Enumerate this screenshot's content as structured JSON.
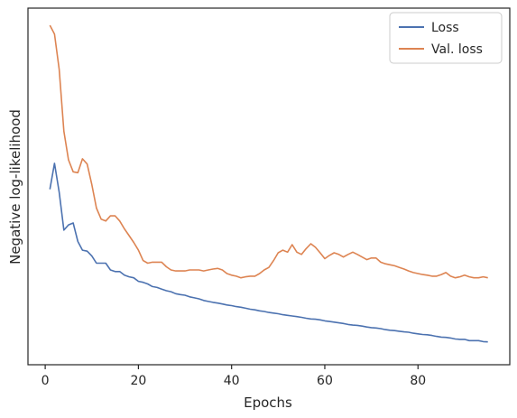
{
  "chart_data": {
    "type": "line",
    "title": "",
    "xlabel": "Epochs",
    "ylabel": "Negative log-likelihood",
    "xlim": [
      -3.7,
      99.7
    ],
    "ylim": [
      0,
      100
    ],
    "x_ticks": [
      0,
      20,
      40,
      60,
      80
    ],
    "y_ticks_shown": false,
    "grid": false,
    "legend": {
      "position": "top-right",
      "entries": [
        "Loss",
        "Val. loss"
      ]
    },
    "series": [
      {
        "name": "Loss",
        "color": "#4c72b0",
        "x": [
          1,
          2,
          3,
          4,
          5,
          6,
          7,
          8,
          9,
          10,
          11,
          12,
          13,
          14,
          15,
          16,
          17,
          18,
          19,
          20,
          21,
          22,
          23,
          24,
          25,
          26,
          27,
          28,
          29,
          30,
          31,
          32,
          33,
          34,
          35,
          36,
          37,
          38,
          39,
          40,
          41,
          42,
          43,
          44,
          45,
          46,
          47,
          48,
          49,
          50,
          51,
          52,
          53,
          54,
          55,
          56,
          57,
          58,
          59,
          60,
          61,
          62,
          63,
          64,
          65,
          66,
          67,
          68,
          69,
          70,
          71,
          72,
          73,
          74,
          75,
          76,
          77,
          78,
          79,
          80,
          81,
          82,
          83,
          84,
          85,
          86,
          87,
          88,
          89,
          90,
          91,
          92,
          93,
          94,
          95
        ],
        "y": [
          49.4,
          57.4,
          48.5,
          36.8,
          38.4,
          39.0,
          33.3,
          30.6,
          30.3,
          28.8,
          26.6,
          26.6,
          26.6,
          24.5,
          24.0,
          24.0,
          22.9,
          22.4,
          22.1,
          21.0,
          20.7,
          20.2,
          19.4,
          19.1,
          18.6,
          18.1,
          17.8,
          17.2,
          16.9,
          16.7,
          16.2,
          15.9,
          15.6,
          15.1,
          14.8,
          14.5,
          14.3,
          14.0,
          13.7,
          13.5,
          13.2,
          13.0,
          12.7,
          12.4,
          12.2,
          11.9,
          11.7,
          11.4,
          11.2,
          11.0,
          10.7,
          10.5,
          10.3,
          10.1,
          9.9,
          9.6,
          9.4,
          9.3,
          9.1,
          8.8,
          8.6,
          8.4,
          8.2,
          8.0,
          7.7,
          7.5,
          7.4,
          7.2,
          6.9,
          6.7,
          6.6,
          6.4,
          6.1,
          5.9,
          5.8,
          5.6,
          5.4,
          5.3,
          5.0,
          4.8,
          4.6,
          4.5,
          4.3,
          4.0,
          3.8,
          3.7,
          3.5,
          3.2,
          3.1,
          3.1,
          2.7,
          2.7,
          2.7,
          2.4,
          2.3
        ]
      },
      {
        "name": "Val. loss",
        "color": "#dd8452",
        "x": [
          1,
          2,
          3,
          4,
          5,
          6,
          7,
          8,
          9,
          10,
          11,
          12,
          13,
          14,
          15,
          16,
          17,
          18,
          19,
          20,
          21,
          22,
          23,
          24,
          25,
          26,
          27,
          28,
          29,
          30,
          31,
          32,
          33,
          34,
          35,
          36,
          37,
          38,
          39,
          40,
          41,
          42,
          43,
          44,
          45,
          46,
          47,
          48,
          49,
          50,
          51,
          52,
          53,
          54,
          55,
          56,
          57,
          58,
          59,
          60,
          61,
          62,
          63,
          64,
          65,
          66,
          67,
          68,
          69,
          70,
          71,
          72,
          73,
          74,
          75,
          76,
          77,
          78,
          79,
          80,
          81,
          82,
          83,
          84,
          85,
          86,
          87,
          88,
          89,
          90,
          91,
          92,
          93,
          94,
          95
        ],
        "y": [
          100.0,
          97.3,
          86.4,
          67.3,
          58.5,
          54.8,
          54.5,
          58.8,
          57.2,
          50.8,
          43.6,
          40.2,
          39.6,
          41.2,
          41.2,
          39.6,
          37.2,
          35.1,
          33.0,
          30.6,
          27.4,
          26.6,
          26.9,
          26.9,
          26.9,
          25.5,
          24.5,
          24.2,
          24.2,
          24.2,
          24.5,
          24.5,
          24.5,
          24.2,
          24.5,
          24.8,
          25.0,
          24.5,
          23.4,
          22.9,
          22.6,
          22.1,
          22.4,
          22.6,
          22.6,
          23.4,
          24.5,
          25.3,
          27.4,
          29.8,
          30.6,
          30.0,
          32.3,
          30.0,
          29.3,
          31.1,
          32.6,
          31.5,
          29.8,
          28.0,
          29.0,
          29.8,
          29.3,
          28.5,
          29.3,
          30.0,
          29.3,
          28.5,
          27.7,
          28.2,
          28.2,
          26.9,
          26.4,
          26.1,
          25.8,
          25.3,
          24.8,
          24.2,
          23.7,
          23.4,
          23.1,
          22.9,
          22.6,
          22.6,
          23.1,
          23.7,
          22.6,
          22.1,
          22.4,
          22.9,
          22.4,
          22.1,
          22.1,
          22.4,
          22.1
        ]
      }
    ]
  }
}
